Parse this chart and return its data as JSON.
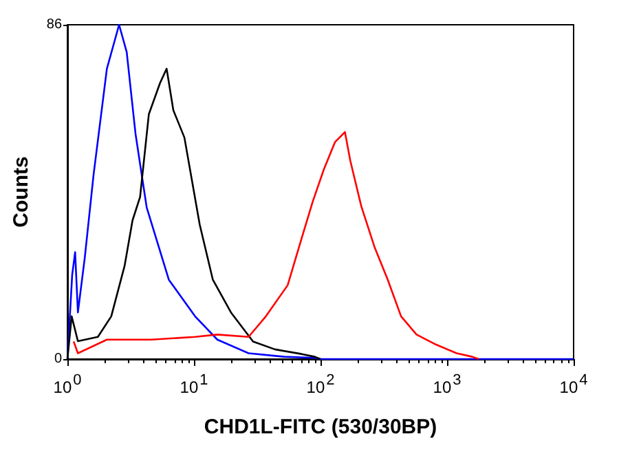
{
  "chart_data": {
    "type": "line",
    "xlabel": "CHD1L-FITC (530/30BP)",
    "ylabel": "Counts",
    "log": "x",
    "grid": false,
    "marker": "none",
    "line_style": "solid",
    "xlim": [
      1,
      10000
    ],
    "xticks": [
      {
        "value": 1,
        "label": "10$^{0}$"
      },
      {
        "value": 10,
        "label": "10$^{1}$"
      },
      {
        "value": 100,
        "label": "10$^{2}$"
      },
      {
        "value": 1000,
        "label": "10$^{3}$"
      },
      {
        "value": 10000,
        "label": "10$^{4}$"
      }
    ],
    "ylim": [
      0,
      86
    ],
    "yticks": [
      0,
      86
    ],
    "series": [
      {
        "color": "#0000ff",
        "x": [
          1.0,
          1.09,
          1.15,
          1.21,
          1.37,
          1.61,
          2.05,
          2.56,
          2.94,
          3.45,
          4.23,
          6.33,
          10.2,
          15.3,
          27,
          51.5,
          89.6,
          100,
          10000
        ],
        "values": [
          0,
          21.6,
          27.5,
          12,
          26,
          47.5,
          74.7,
          86,
          79,
          58,
          39,
          20.4,
          11,
          5,
          1.5,
          0.6,
          0.3,
          0,
          0
        ]
      },
      {
        "color": "#000000",
        "x": [
          1.0,
          1.08,
          1.21,
          1.74,
          2.22,
          2.83,
          3.27,
          3.75,
          4.4,
          5.39,
          6.08,
          6.87,
          8.4,
          11.1,
          14.1,
          19.6,
          29.3,
          43.6,
          70.8,
          90,
          100
        ],
        "values": [
          0,
          11,
          4.6,
          5.7,
          11,
          24,
          35.7,
          41.7,
          63,
          71,
          74.7,
          64,
          57,
          34.6,
          20.4,
          12,
          4.5,
          2.5,
          1.3,
          0.6,
          0
        ]
      },
      {
        "color": "#ff0000",
        "x": [
          1.12,
          1.21,
          2.05,
          4.58,
          10.2,
          15.3,
          27,
          37,
          55,
          70.8,
          86.6,
          106,
          130,
          156,
          172,
          210,
          268,
          340,
          433,
          574,
          796,
          1190,
          1580,
          1780
        ],
        "values": [
          4.5,
          1.5,
          5,
          5,
          5.7,
          6.3,
          5.7,
          11,
          19,
          31,
          40.4,
          48.7,
          55.8,
          58.4,
          51,
          39.3,
          28.7,
          20.4,
          11,
          6.3,
          3.9,
          1.5,
          0.6,
          0
        ]
      }
    ]
  }
}
